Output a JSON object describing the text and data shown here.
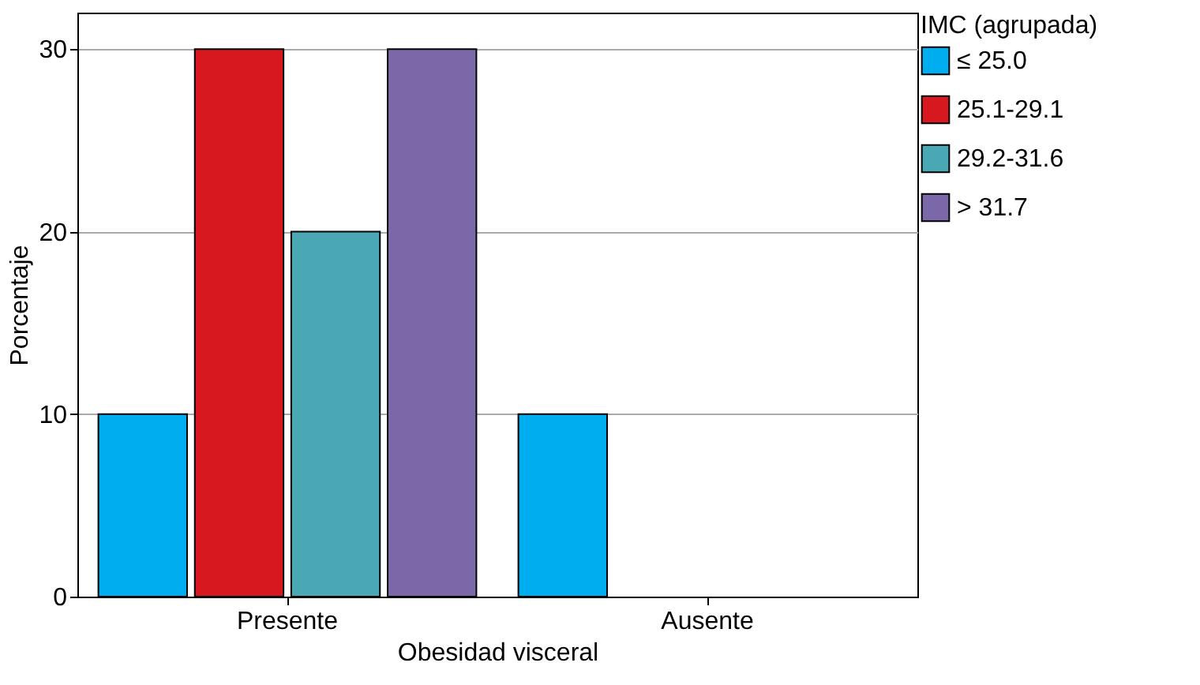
{
  "chart_data": {
    "type": "bar",
    "xlabel": "Obesidad visceral",
    "ylabel": "Porcentaje",
    "legend_title": "IMC (agrupada)",
    "categories": [
      "Presente",
      "Ausente"
    ],
    "series": [
      {
        "name": "≤ 25.0",
        "color": "#00aeef",
        "values": [
          10,
          10
        ]
      },
      {
        "name": "25.1-29.1",
        "color": "#d7191f",
        "values": [
          30,
          null
        ]
      },
      {
        "name": "29.2-31.6",
        "color": "#4aa8b5",
        "values": [
          20,
          null
        ]
      },
      {
        "name": "> 31.7",
        "color": "#7b68a8",
        "values": [
          30,
          null
        ]
      }
    ],
    "ylim": [
      0,
      32
    ],
    "yticks": [
      0,
      10,
      20,
      30
    ],
    "grid": "y",
    "legend": "top right"
  }
}
